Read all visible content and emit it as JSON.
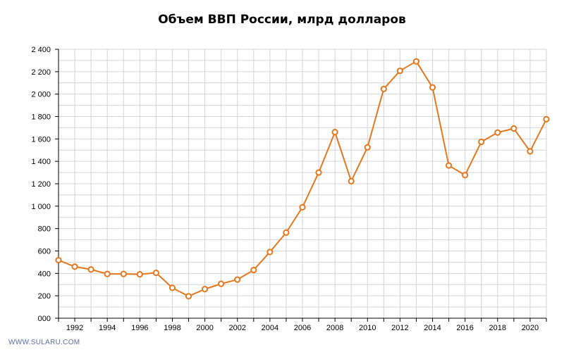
{
  "watermark": "WWW.SULARU.COM",
  "colors": {
    "line": "#e4781e",
    "point_fill": "#ffffff",
    "grid": "#d4d4d4",
    "axis": "#000000"
  },
  "chart_data": {
    "type": "line",
    "title": "Объем ВВП России, млрд долларов",
    "xlabel": "",
    "ylabel": "",
    "xlim": [
      1991,
      2021
    ],
    "ylim": [
      0,
      2400
    ],
    "grid": true,
    "y_ticks": [
      0,
      200,
      400,
      600,
      800,
      1000,
      1200,
      1400,
      1600,
      1800,
      2000,
      2200,
      2400
    ],
    "y_tick_labels": [
      "000",
      "200",
      "400",
      "600",
      "800",
      "1 000",
      "1 200",
      "1 400",
      "1 600",
      "1 800",
      "2 000",
      "2 200",
      "2 400"
    ],
    "x_tick_labels": [
      "1992",
      "1994",
      "1996",
      "1998",
      "2000",
      "2002",
      "2004",
      "2006",
      "2008",
      "2010",
      "2012",
      "2014",
      "2016",
      "2018",
      "2020"
    ],
    "x": [
      1991,
      1992,
      1993,
      1994,
      1995,
      1996,
      1997,
      1998,
      1999,
      2000,
      2001,
      2002,
      2003,
      2004,
      2005,
      2006,
      2007,
      2008,
      2009,
      2010,
      2011,
      2012,
      2013,
      2014,
      2015,
      2016,
      2017,
      2018,
      2019,
      2020,
      2021
    ],
    "series": [
      {
        "values": [
          518,
          460,
          435,
          395,
          395,
          392,
          405,
          271,
          196,
          260,
          307,
          345,
          430,
          591,
          764,
          990,
          1300,
          1661,
          1223,
          1525,
          2046,
          2208,
          2292,
          2059,
          1363,
          1277,
          1574,
          1657,
          1693,
          1489,
          1776
        ]
      }
    ]
  }
}
